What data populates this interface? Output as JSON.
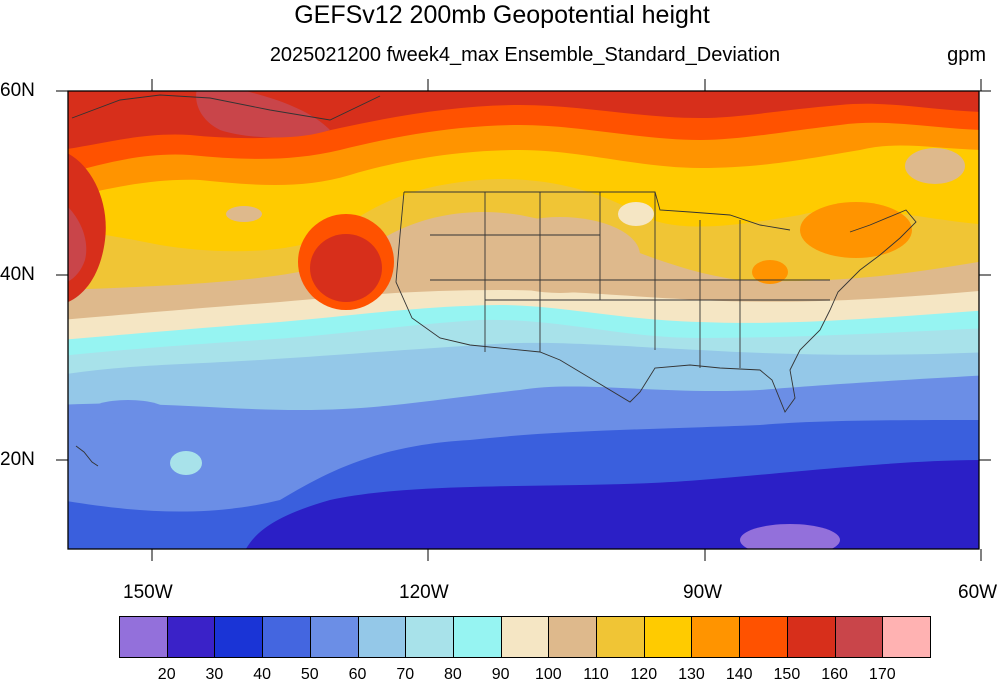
{
  "title": "GEFSv12 200mb Geopotential height",
  "subtitle": "2025021200 fweek4_max Ensemble_Standard_Deviation",
  "units": "gpm",
  "lat_labels": [
    "60N",
    "40N",
    "20N"
  ],
  "lon_labels": [
    "150W",
    "120W",
    "90W",
    "60W"
  ],
  "legend": {
    "colors": [
      "#9370db",
      "#3a22c8",
      "#1a34d6",
      "#4466e0",
      "#6b8ee6",
      "#94c8e8",
      "#a8e2ea",
      "#96f4f2",
      "#f5e6c4",
      "#deb98c",
      "#f0c535",
      "#ffcb00",
      "#ff9400",
      "#ff5200",
      "#d72f1b",
      "#c9454a",
      "#ffb2b2"
    ],
    "labels": [
      "20",
      "30",
      "40",
      "50",
      "60",
      "70",
      "80",
      "90",
      "100",
      "110",
      "120",
      "130",
      "140",
      "150",
      "160",
      "170"
    ]
  }
}
